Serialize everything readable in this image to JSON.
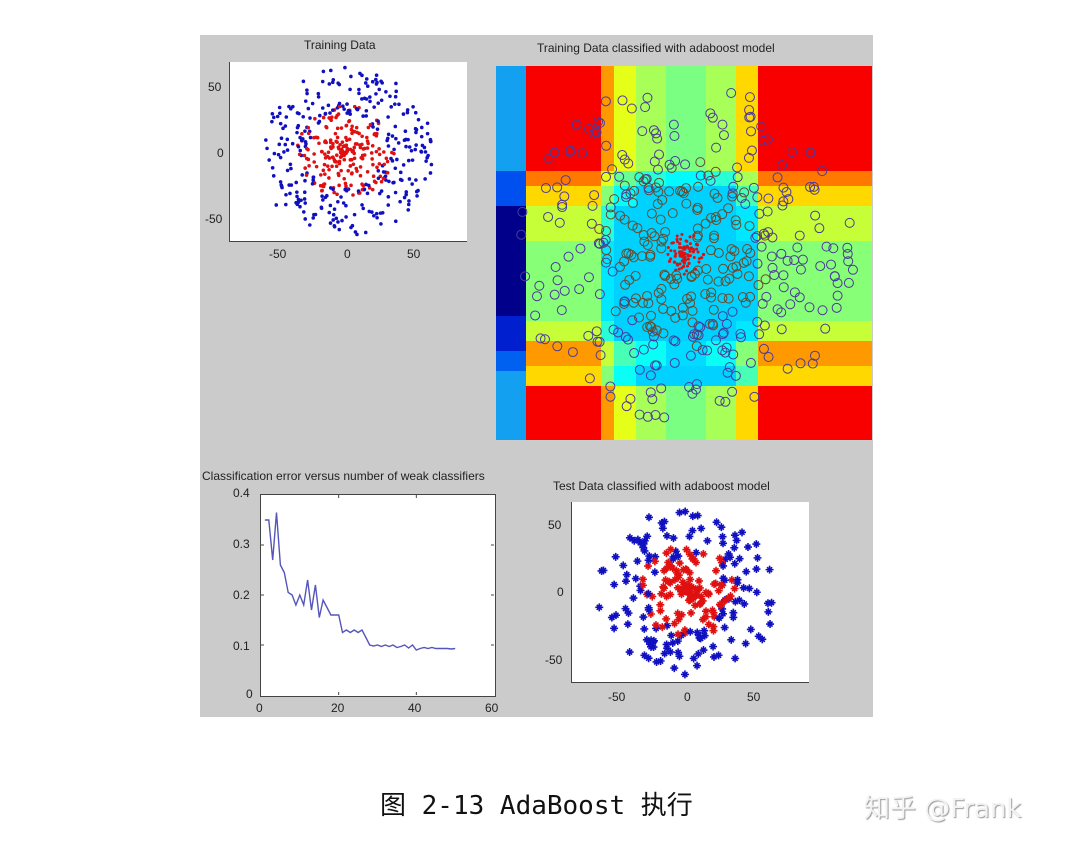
{
  "caption": "图 2-13 AdaBoost 执行",
  "watermark": "知乎 @Frank",
  "colors": {
    "figure_bg": "#cbcbcb",
    "class_outer": "#1010c0",
    "class_inner": "#e01010",
    "error_line": "#5555bb"
  },
  "chart_data": [
    {
      "type": "scatter",
      "title": "Training Data",
      "xlabel": "",
      "ylabel": "",
      "xlim": [
        -85,
        90
      ],
      "ylim": [
        -70,
        70
      ],
      "xticks": [
        "-50",
        "0",
        "50"
      ],
      "yticks": [
        "50",
        "0",
        "-50"
      ],
      "marker": "dot",
      "series": [
        {
          "name": "outer class (blue)",
          "color": "#1010c0",
          "description": "ring of points at radius ~30-65"
        },
        {
          "name": "inner class (red)",
          "color": "#e01010",
          "description": "dense cluster within radius ~35 of origin"
        }
      ]
    },
    {
      "type": "heatmap",
      "title": "Training Data classified with adaboost model",
      "xlabel": "",
      "ylabel": "",
      "colormap": "jet",
      "description": "Decision-score map formed by axis-aligned stumps: dark red corners, orange/yellow cross bands, cyan center; training points overlaid as hollow circles with red core cluster",
      "left_strip_colors": [
        "#14a0f0",
        "#0050f0",
        "#00008a",
        "#0030e0",
        "#14a0f0"
      ],
      "overlay_marker": "circle"
    },
    {
      "type": "line",
      "title": "Classification error versus number of weak classifiers",
      "xlabel": "",
      "ylabel": "",
      "xlim": [
        0,
        60
      ],
      "ylim": [
        0,
        0.4
      ],
      "xticks": [
        "0",
        "20",
        "40",
        "60"
      ],
      "yticks": [
        "0.4",
        "0.3",
        "0.2",
        "0.1",
        "0"
      ],
      "x": [
        1,
        2,
        3,
        4,
        5,
        6,
        7,
        8,
        9,
        10,
        11,
        12,
        13,
        14,
        15,
        16,
        17,
        18,
        19,
        20,
        21,
        22,
        23,
        24,
        25,
        26,
        27,
        28,
        29,
        30,
        31,
        32,
        33,
        34,
        35,
        36,
        37,
        38,
        39,
        40,
        41,
        42,
        43,
        44,
        45,
        46,
        47,
        48,
        49,
        50
      ],
      "series": [
        {
          "name": "error",
          "color": "#5555bb",
          "values": [
            0.35,
            0.35,
            0.27,
            0.365,
            0.26,
            0.245,
            0.205,
            0.2,
            0.18,
            0.2,
            0.18,
            0.23,
            0.17,
            0.22,
            0.155,
            0.19,
            0.175,
            0.16,
            0.16,
            0.16,
            0.125,
            0.13,
            0.125,
            0.13,
            0.125,
            0.13,
            0.115,
            0.1,
            0.098,
            0.1,
            0.097,
            0.1,
            0.097,
            0.1,
            0.095,
            0.097,
            0.1,
            0.094,
            0.1,
            0.09,
            0.093,
            0.095,
            0.093,
            0.095,
            0.093,
            0.093,
            0.093,
            0.093,
            0.092,
            0.093
          ]
        }
      ]
    },
    {
      "type": "scatter",
      "title": "Test Data classified with adaboost model",
      "xlabel": "",
      "ylabel": "",
      "xlim": [
        -85,
        90
      ],
      "ylim": [
        -70,
        70
      ],
      "xticks": [
        "-50",
        "0",
        "50"
      ],
      "yticks": [
        "50",
        "0",
        "-50"
      ],
      "marker": "star",
      "series": [
        {
          "name": "classified outer (blue)",
          "color": "#1010c0"
        },
        {
          "name": "classified inner (red)",
          "color": "#e01010"
        }
      ]
    }
  ]
}
